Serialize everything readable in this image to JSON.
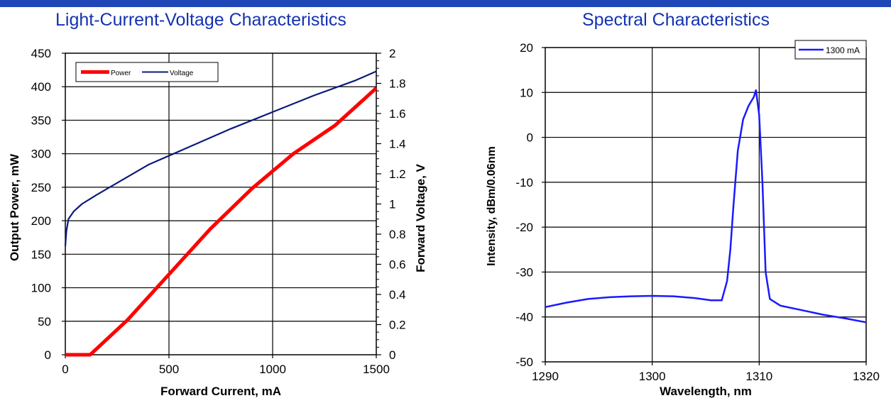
{
  "colors": {
    "top_bar": "#1f47b8",
    "title": "#1432b0",
    "power": "#ff0000",
    "voltage": "#0d1a7a",
    "spectrum": "#1a1aff"
  },
  "chart_data": [
    {
      "type": "line",
      "title": "Light-Current-Voltage Characteristics",
      "xlabel": "Forward Current, mA",
      "ylabel": "Output Power, mW",
      "y2label": "Forward Voltage, V",
      "xlim": [
        0,
        1500
      ],
      "ylim": [
        0,
        450
      ],
      "y2lim": [
        0,
        2
      ],
      "xticks": [
        "0",
        "500",
        "1000",
        "1500"
      ],
      "yticks": [
        "0",
        "50",
        "100",
        "150",
        "200",
        "250",
        "300",
        "350",
        "400",
        "450"
      ],
      "y2ticks": [
        "0",
        "0.2",
        "0.4",
        "0.6",
        "0.8",
        "1",
        "1.2",
        "1.4",
        "1.6",
        "1.8",
        "2"
      ],
      "grid": true,
      "legend_position": "top-left",
      "series": [
        {
          "name": "Power",
          "axis": "left",
          "x": [
            0,
            120,
            300,
            500,
            700,
            900,
            1100,
            1300,
            1400,
            1500
          ],
          "y": [
            0,
            0,
            52,
            120,
            188,
            248,
            300,
            342,
            370,
            398
          ]
        },
        {
          "name": "Voltage",
          "axis": "right",
          "x": [
            0,
            5,
            15,
            40,
            80,
            150,
            250,
            400,
            600,
            800,
            1000,
            1200,
            1400,
            1500
          ],
          "y": [
            0.72,
            0.82,
            0.9,
            0.95,
            1.0,
            1.06,
            1.14,
            1.26,
            1.38,
            1.5,
            1.61,
            1.72,
            1.82,
            1.88
          ]
        }
      ]
    },
    {
      "type": "line",
      "title": "Spectral Characteristics",
      "xlabel": "Wavelength, nm",
      "ylabel": "Intensity, dBm/0.06nm",
      "xlim": [
        1290,
        1320
      ],
      "ylim": [
        -50,
        20
      ],
      "xticks": [
        "1290",
        "1300",
        "1310",
        "1320"
      ],
      "yticks": [
        "-50",
        "-40",
        "-30",
        "-20",
        "-10",
        "0",
        "10",
        "20"
      ],
      "grid": true,
      "legend_position": "top-right",
      "series": [
        {
          "name": "1300 mA",
          "x": [
            1290,
            1292,
            1294,
            1296,
            1298,
            1300,
            1302,
            1304,
            1305.5,
            1306.5,
            1307,
            1307.3,
            1307.6,
            1308,
            1308.5,
            1309,
            1309.5,
            1309.7,
            1310,
            1310.3,
            1310.6,
            1311,
            1312,
            1314,
            1316,
            1318,
            1320
          ],
          "y": [
            -37.8,
            -36.8,
            -36,
            -35.6,
            -35.4,
            -35.3,
            -35.4,
            -35.8,
            -36.3,
            -36.3,
            -32,
            -25,
            -15,
            -3,
            4,
            7,
            9,
            10.5,
            5,
            -10,
            -30,
            -36,
            -37.5,
            -38.5,
            -39.5,
            -40.3,
            -41.2
          ]
        }
      ]
    }
  ]
}
